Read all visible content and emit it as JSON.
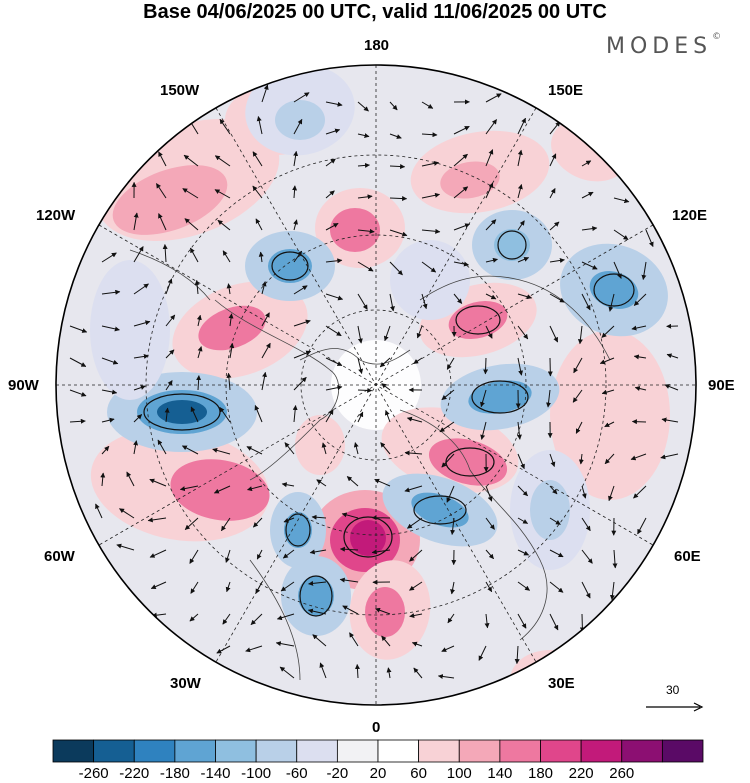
{
  "title": "Base 04/06/2025 00 UTC, valid 11/06/2025 00 UTC",
  "brand": {
    "text": "MODES",
    "mark": "©"
  },
  "longitude_labels": {
    "top": "180",
    "bottom": "0",
    "left": "90W",
    "right": "90E",
    "upper_left_150": "150W",
    "upper_right_150": "150E",
    "left_120": "120W",
    "right_120": "120E",
    "lower_left_60": "60W",
    "lower_right_60": "60E",
    "lower_left_30": "30W",
    "lower_right_30": "30E"
  },
  "wind_reference": {
    "label": "30"
  },
  "colorbar": {
    "ticks": [
      "-260",
      "-220",
      "-180",
      "-140",
      "-100",
      "-60",
      "-20",
      "20",
      "60",
      "100",
      "140",
      "180",
      "220",
      "260"
    ],
    "colors": [
      "#0b3a5c",
      "#155f93",
      "#2f82bf",
      "#5fa4d3",
      "#8fbfe0",
      "#b9d0e8",
      "#dcdff0",
      "#f2f2f4",
      "#ffffff",
      "#f8d2d6",
      "#f4a8b8",
      "#ee78a0",
      "#e0468b",
      "#c21a7a",
      "#8c0f72",
      "#5a0a66"
    ]
  },
  "map_features": {
    "projection": "north polar stereographic",
    "field": "geopotential height anomaly",
    "graticule": "dashed",
    "wind_vectors": true
  }
}
